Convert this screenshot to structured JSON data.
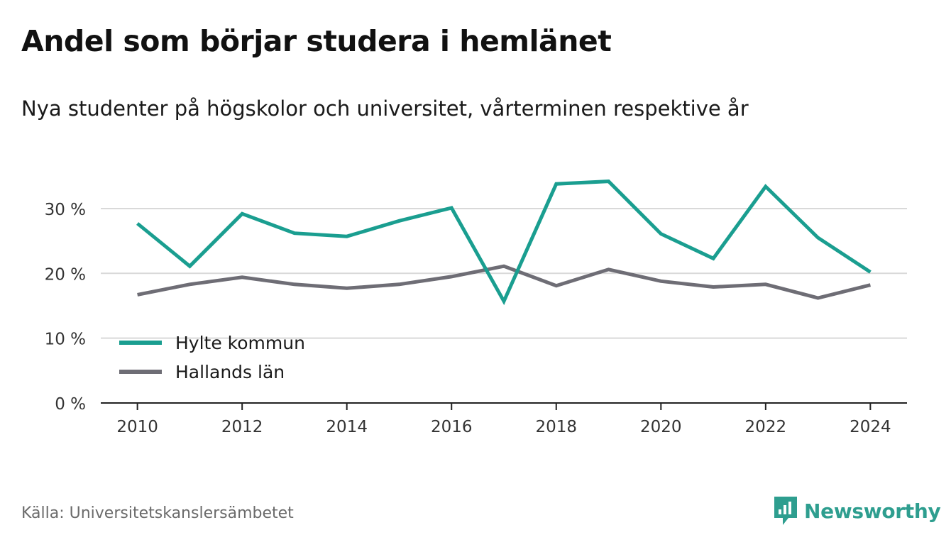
{
  "title": "Andel som börjar studera i hemlänet",
  "subtitle": "Nya studenter på högskolor och universitet, vårterminen respektive år",
  "source": "Källa: Universitetskanslersämbetet",
  "brand": {
    "name": "Newsworthy",
    "icon": "newsworthy-logo-icon",
    "color": "#2e9e8f"
  },
  "chart_data": {
    "type": "line",
    "x": [
      2010,
      2011,
      2012,
      2013,
      2014,
      2015,
      2016,
      2017,
      2018,
      2019,
      2020,
      2021,
      2022,
      2023,
      2024
    ],
    "x_ticks": [
      2010,
      2012,
      2014,
      2016,
      2018,
      2020,
      2022,
      2024
    ],
    "x_tick_labels": [
      "2010",
      "2012",
      "2014",
      "2016",
      "2018",
      "2020",
      "2022",
      "2024"
    ],
    "y_ticks": [
      0,
      10,
      20,
      30
    ],
    "y_tick_labels": [
      "0 %",
      "10 %",
      "20 %",
      "30 %"
    ],
    "ylim": [
      0,
      37
    ],
    "xlim": [
      2009.3,
      2024.7
    ],
    "grid": true,
    "legend_position": "lower-left",
    "series": [
      {
        "name": "Hylte kommun",
        "color": "#1a9e90",
        "values": [
          27.7,
          21.1,
          29.2,
          26.2,
          25.7,
          28.1,
          30.1,
          15.7,
          33.8,
          34.2,
          26.1,
          22.3,
          33.4,
          25.5,
          20.2
        ]
      },
      {
        "name": "Hallands län",
        "color": "#6e6d75",
        "values": [
          16.7,
          18.3,
          19.4,
          18.3,
          17.7,
          18.3,
          19.5,
          21.1,
          18.1,
          20.6,
          18.8,
          17.9,
          18.3,
          16.2,
          18.2
        ]
      }
    ]
  }
}
